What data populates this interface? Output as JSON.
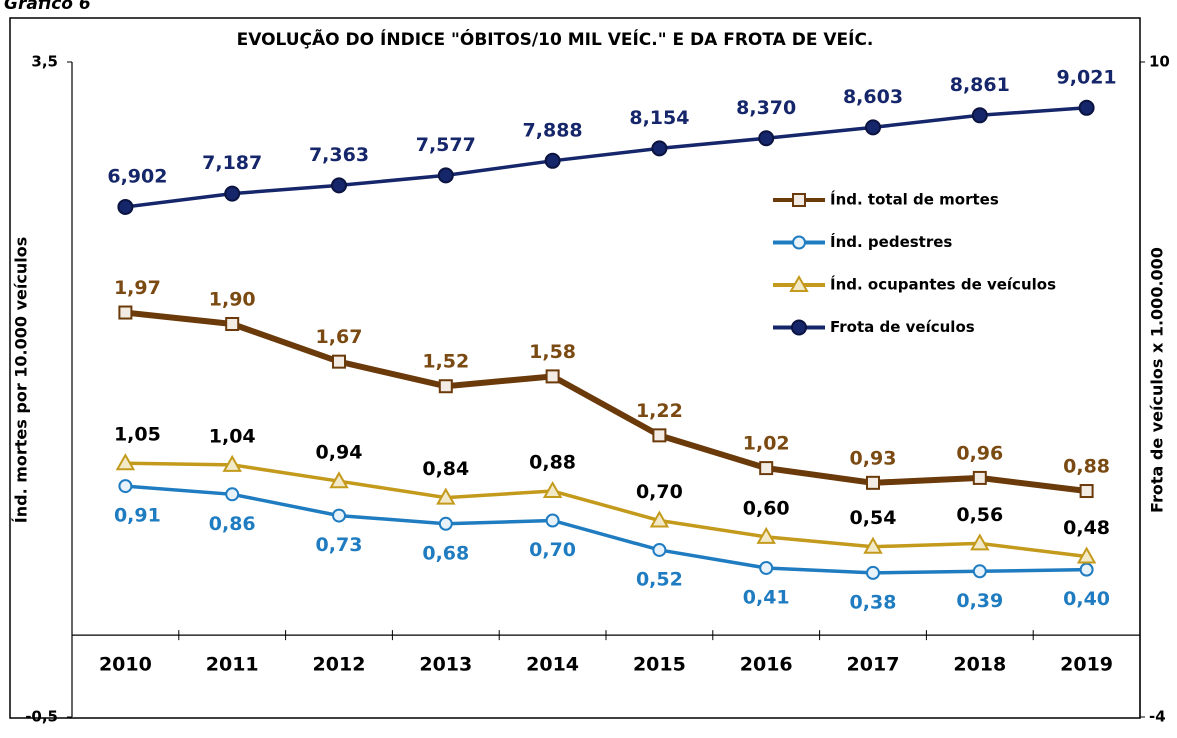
{
  "caption": "Gráfico 6",
  "chart_data": {
    "type": "line",
    "title": "EVOLUÇÃO DO ÍNDICE \"ÓBITOS/10 MIL VEÍC.\" E DA FROTA DE VEÍC.",
    "y_label": "Índ. mortes por 10.000 veículos",
    "y2_label": "Frota de veículos x 1.000.000",
    "categories": [
      "2010",
      "2011",
      "2012",
      "2013",
      "2014",
      "2015",
      "2016",
      "2017",
      "2018",
      "2019"
    ],
    "ylim": [
      -0.5,
      3.5
    ],
    "yticks": [
      {
        "value": 3.5,
        "label": "3,5"
      },
      {
        "value": -0.5,
        "label": "-0,5"
      }
    ],
    "y2lim": [
      -4,
      10
    ],
    "y2ticks": [
      10,
      -4
    ],
    "legend": "right",
    "series": [
      {
        "name": "Índ. total de mortes",
        "color": "#6b3a0a",
        "label_color": "#7a4a12",
        "marker": "square",
        "values": [
          1.97,
          1.9,
          1.67,
          1.52,
          1.58,
          1.22,
          1.02,
          0.93,
          0.96,
          0.88
        ],
        "value_labels": [
          "1,97",
          "1,90",
          "1,67",
          "1,52",
          "1,58",
          "1,22",
          "1,02",
          "0,93",
          "0,96",
          "0,88"
        ]
      },
      {
        "name": "Índ. pedestres",
        "color": "#1f7cc1",
        "label_color": "#1f7cc1",
        "marker": "circle",
        "values": [
          0.91,
          0.86,
          0.73,
          0.68,
          0.7,
          0.52,
          0.41,
          0.38,
          0.39,
          0.4
        ],
        "value_labels": [
          "0,91",
          "0,86",
          "0,73",
          "0,68",
          "0,70",
          "0,52",
          "0,41",
          "0,38",
          "0,39",
          "0,40"
        ]
      },
      {
        "name": "Índ. ocupantes de veículos",
        "color": "#c49a1c",
        "label_color": "#000000",
        "marker": "triangle",
        "values": [
          1.05,
          1.04,
          0.94,
          0.84,
          0.88,
          0.7,
          0.6,
          0.54,
          0.56,
          0.48
        ],
        "value_labels": [
          "1,05",
          "1,04",
          "0,94",
          "0,84",
          "0,88",
          "0,70",
          "0,60",
          "0,54",
          "0,56",
          "0,48"
        ]
      },
      {
        "name": "Frota de veículos",
        "color": "#16266a",
        "label_color": "#16266a",
        "marker": "dot",
        "axis": "y2",
        "values": [
          6.902,
          7.187,
          7.363,
          7.577,
          7.888,
          8.154,
          8.37,
          8.603,
          8.861,
          9.021
        ],
        "value_labels": [
          "6,902",
          "7,187",
          "7,363",
          "7,577",
          "7,888",
          "8,154",
          "8,370",
          "8,603",
          "8,861",
          "9,021"
        ]
      }
    ]
  }
}
